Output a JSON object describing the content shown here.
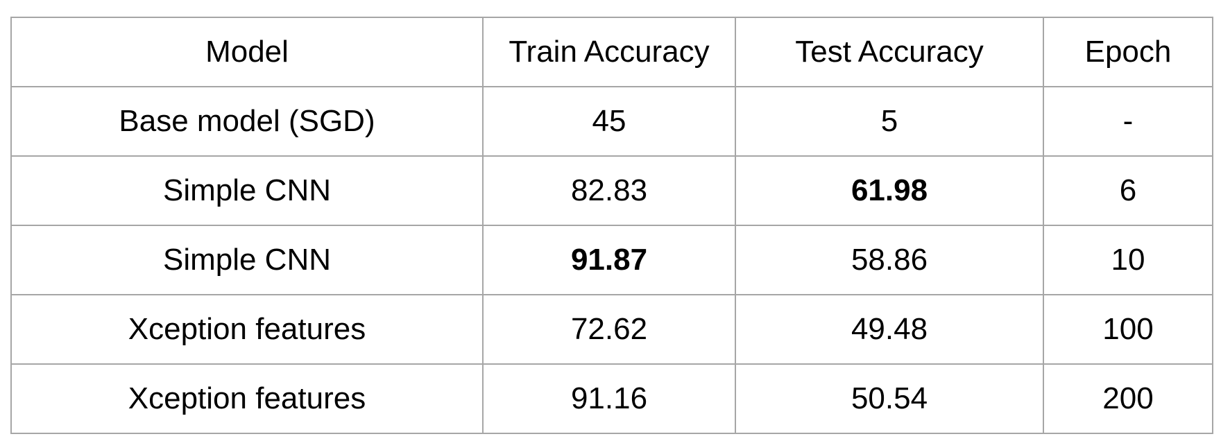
{
  "chart_data": {
    "type": "table",
    "columns": [
      "Model",
      "Train Accuracy",
      "Test Accuracy",
      "Epoch"
    ],
    "rows": [
      {
        "model": "Base model (SGD)",
        "train_accuracy": "45",
        "test_accuracy": "5",
        "epoch": "-",
        "bold": []
      },
      {
        "model": "Simple CNN",
        "train_accuracy": "82.83",
        "test_accuracy": "61.98",
        "epoch": "6",
        "bold": [
          "test_accuracy"
        ]
      },
      {
        "model": "Simple CNN",
        "train_accuracy": "91.87",
        "test_accuracy": "58.86",
        "epoch": "10",
        "bold": [
          "train_accuracy"
        ]
      },
      {
        "model": "Xception features",
        "train_accuracy": "72.62",
        "test_accuracy": "49.48",
        "epoch": "100",
        "bold": []
      },
      {
        "model": "Xception features",
        "train_accuracy": "91.16",
        "test_accuracy": "50.54",
        "epoch": "200",
        "bold": []
      }
    ]
  },
  "colors": {
    "border": "#a6a6a6",
    "text": "#000000",
    "background": "#ffffff"
  }
}
